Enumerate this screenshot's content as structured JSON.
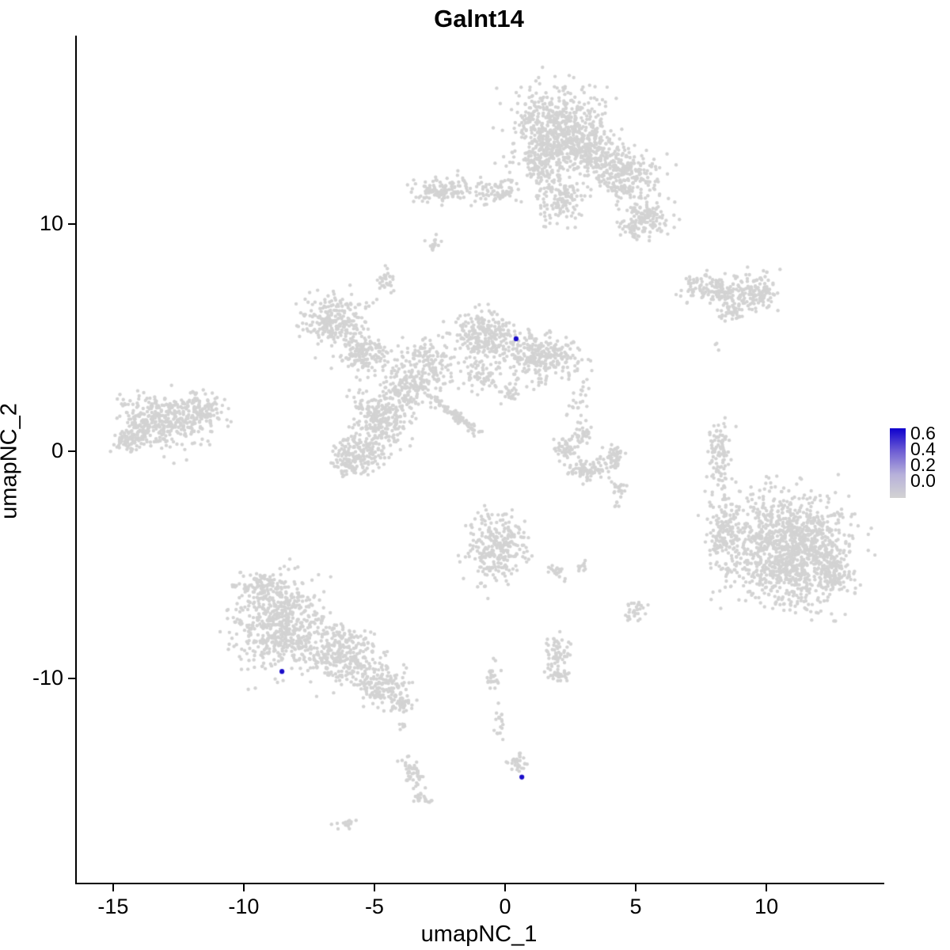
{
  "chart_data": {
    "type": "scatter",
    "title": "Galnt14",
    "xlabel": "umapNC_1",
    "ylabel": "umapNC_2",
    "xlim": [
      -16.45,
      14.45
    ],
    "ylim": [
      -19.0,
      18.3
    ],
    "x_ticks": [
      "-15",
      "-10",
      "-5",
      "0",
      "5",
      "10"
    ],
    "x_tick_values": [
      -15,
      -10,
      -5,
      0,
      5,
      10
    ],
    "y_ticks": [
      "10",
      "0",
      "-10"
    ],
    "y_tick_values": [
      10,
      0,
      -10
    ],
    "grid": false,
    "point_color": "#d3d3d3",
    "point_radius": 2.2,
    "highlight_color": "#1a0dc9",
    "legend": {
      "position": "right",
      "labels": [
        "0.6",
        "0.4",
        "0.2",
        "0.0"
      ],
      "gradient": [
        "#0e00cd",
        "#6f5fd4",
        "#b7b1da",
        "#d3d3d3"
      ]
    },
    "clusters": [
      {
        "x": 1.9,
        "y": 14.1,
        "rx": 1.7,
        "ry": 1.9,
        "rot": 0,
        "n": 650
      },
      {
        "x": 3.2,
        "y": 13.2,
        "rx": 1.0,
        "ry": 1.0,
        "rot": 0,
        "n": 200
      },
      {
        "x": 4.6,
        "y": 12.2,
        "rx": 1.2,
        "ry": 1.1,
        "rot": -30,
        "n": 250
      },
      {
        "x": 5.2,
        "y": 10.2,
        "rx": 1.0,
        "ry": 0.9,
        "rot": 0,
        "n": 160
      },
      {
        "x": 2.0,
        "y": 11.1,
        "rx": 0.9,
        "ry": 1.1,
        "rot": 0,
        "n": 140
      },
      {
        "x": -0.4,
        "y": 11.4,
        "rx": 0.8,
        "ry": 0.5,
        "rot": 0,
        "n": 70
      },
      {
        "x": -2.4,
        "y": 11.5,
        "rx": 1.2,
        "ry": 0.55,
        "rot": 10,
        "n": 130
      },
      {
        "x": -2.9,
        "y": 9.1,
        "rx": 0.3,
        "ry": 0.4,
        "rot": 0,
        "n": 15
      },
      {
        "x": 1.3,
        "y": 12.6,
        "rx": 0.6,
        "ry": 0.8,
        "rot": 0,
        "n": 80
      },
      {
        "x": -4.6,
        "y": 7.5,
        "rx": 0.35,
        "ry": 0.55,
        "rot": 0,
        "n": 30
      },
      {
        "x": 7.9,
        "y": 7.1,
        "rx": 1.4,
        "ry": 0.6,
        "rot": -8,
        "n": 150
      },
      {
        "x": 9.6,
        "y": 7.0,
        "rx": 0.9,
        "ry": 0.85,
        "rot": 0,
        "n": 130
      },
      {
        "x": 8.6,
        "y": 6.1,
        "rx": 0.5,
        "ry": 0.4,
        "rot": 0,
        "n": 40
      },
      {
        "x": 8.0,
        "y": 4.6,
        "rx": 0.15,
        "ry": 0.2,
        "rot": 0,
        "n": 3
      },
      {
        "x": -6.6,
        "y": 5.75,
        "rx": 1.2,
        "ry": 1.1,
        "rot": 20,
        "n": 240
      },
      {
        "x": -5.5,
        "y": 4.3,
        "rx": 0.95,
        "ry": 0.85,
        "rot": 0,
        "n": 150
      },
      {
        "x": -0.9,
        "y": 5.0,
        "rx": 1.1,
        "ry": 1.1,
        "rot": 0,
        "n": 260
      },
      {
        "x": 1.3,
        "y": 4.2,
        "rx": 1.4,
        "ry": 1.0,
        "rot": -15,
        "n": 280
      },
      {
        "x": -3.6,
        "y": 3.1,
        "rx": 1.4,
        "ry": 1.0,
        "rot": 25,
        "n": 230
      },
      {
        "x": -4.8,
        "y": 1.4,
        "rx": 1.1,
        "ry": 1.2,
        "rot": 0,
        "n": 260
      },
      {
        "x": -5.7,
        "y": -0.2,
        "rx": 0.95,
        "ry": 0.9,
        "rot": 0,
        "n": 190
      },
      {
        "x": -2.0,
        "y": 1.6,
        "rx": 1.5,
        "ry": 0.22,
        "rot": -40,
        "n": 90
      },
      {
        "x": -3.0,
        "y": 4.3,
        "rx": 1.1,
        "ry": 0.7,
        "rot": 0,
        "n": 70
      },
      {
        "x": -0.9,
        "y": 3.2,
        "rx": 0.7,
        "ry": 0.5,
        "rot": 0,
        "n": 60
      },
      {
        "x": 0.2,
        "y": 2.6,
        "rx": 0.4,
        "ry": 0.5,
        "rot": 0,
        "n": 25
      },
      {
        "x": 2.8,
        "y": 2.2,
        "rx": 0.4,
        "ry": 0.9,
        "rot": 0,
        "n": 25
      },
      {
        "x": 2.3,
        "y": 0.1,
        "rx": 0.45,
        "ry": 0.5,
        "rot": 0,
        "n": 50
      },
      {
        "x": 3.1,
        "y": -0.8,
        "rx": 0.7,
        "ry": 0.45,
        "rot": 0,
        "n": 80
      },
      {
        "x": 4.1,
        "y": -0.2,
        "rx": 0.4,
        "ry": 0.6,
        "rot": 0,
        "n": 50
      },
      {
        "x": 2.9,
        "y": 0.7,
        "rx": 0.35,
        "ry": 0.35,
        "rot": 0,
        "n": 30
      },
      {
        "x": 4.3,
        "y": -1.6,
        "rx": 0.3,
        "ry": 0.3,
        "rot": 0,
        "n": 20
      },
      {
        "x": -13.3,
        "y": 1.3,
        "rx": 1.5,
        "ry": 1.1,
        "rot": -10,
        "n": 340
      },
      {
        "x": -11.7,
        "y": 1.8,
        "rx": 0.9,
        "ry": 0.8,
        "rot": 0,
        "n": 140
      },
      {
        "x": -14.4,
        "y": 0.4,
        "rx": 0.6,
        "ry": 0.5,
        "rot": 0,
        "n": 70
      },
      {
        "x": 8.1,
        "y": -0.2,
        "rx": 0.45,
        "ry": 1.6,
        "rot": 0,
        "n": 100
      },
      {
        "x": 10.8,
        "y": -4.4,
        "rx": 2.3,
        "ry": 2.4,
        "rot": 0,
        "n": 1250
      },
      {
        "x": 8.3,
        "y": -3.6,
        "rx": 0.7,
        "ry": 1.5,
        "rot": 0,
        "n": 140
      },
      {
        "x": 12.6,
        "y": -5.4,
        "rx": 0.6,
        "ry": 0.8,
        "rot": 0,
        "n": 80
      },
      {
        "x": -0.45,
        "y": -4.2,
        "rx": 1.05,
        "ry": 1.6,
        "rot": 0,
        "n": 280
      },
      {
        "x": 1.9,
        "y": -5.3,
        "rx": 0.35,
        "ry": 0.3,
        "rot": 0,
        "n": 20
      },
      {
        "x": 2.9,
        "y": -5.1,
        "rx": 0.25,
        "ry": 0.25,
        "rot": 0,
        "n": 10
      },
      {
        "x": 4.9,
        "y": -7.0,
        "rx": 0.4,
        "ry": 0.5,
        "rot": 0,
        "n": 30
      },
      {
        "x": 4.2,
        "y": -2.3,
        "rx": 0.15,
        "ry": 0.3,
        "rot": 0,
        "n": 5
      },
      {
        "x": -8.7,
        "y": -7.6,
        "rx": 1.7,
        "ry": 2.0,
        "rot": 0,
        "n": 600
      },
      {
        "x": -6.3,
        "y": -9.0,
        "rx": 1.4,
        "ry": 1.2,
        "rot": -25,
        "n": 300
      },
      {
        "x": -4.8,
        "y": -10.3,
        "rx": 0.9,
        "ry": 0.85,
        "rot": -20,
        "n": 150
      },
      {
        "x": -4.0,
        "y": -11.1,
        "rx": 0.5,
        "ry": 0.4,
        "rot": 0,
        "n": 45
      },
      {
        "x": -9.3,
        "y": -5.9,
        "rx": 0.9,
        "ry": 0.5,
        "rot": 0,
        "n": 80
      },
      {
        "x": -4.0,
        "y": -12.1,
        "rx": 0.2,
        "ry": 0.2,
        "rot": 0,
        "n": 6
      },
      {
        "x": 1.9,
        "y": -8.9,
        "rx": 0.45,
        "ry": 0.7,
        "rot": 0,
        "n": 55
      },
      {
        "x": 2.0,
        "y": -9.9,
        "rx": 0.4,
        "ry": 0.35,
        "rot": 0,
        "n": 30
      },
      {
        "x": -0.55,
        "y": -9.9,
        "rx": 0.3,
        "ry": 0.6,
        "rot": 0,
        "n": 25
      },
      {
        "x": -0.25,
        "y": -11.9,
        "rx": 0.25,
        "ry": 0.8,
        "rot": 0,
        "n": 18
      },
      {
        "x": 0.45,
        "y": -13.7,
        "rx": 0.4,
        "ry": 0.45,
        "rot": 0,
        "n": 30
      },
      {
        "x": -3.6,
        "y": -14.2,
        "rx": 0.35,
        "ry": 0.8,
        "rot": 15,
        "n": 50
      },
      {
        "x": -3.3,
        "y": -15.3,
        "rx": 0.3,
        "ry": 0.3,
        "rot": 0,
        "n": 20
      },
      {
        "x": -6.1,
        "y": -16.4,
        "rx": 0.4,
        "ry": 0.25,
        "rot": 0,
        "n": 14
      }
    ],
    "highlighted_points": [
      {
        "x": 0.36,
        "y": 4.95,
        "value": 0.6
      },
      {
        "x": -8.6,
        "y": -9.7,
        "value": 0.6
      },
      {
        "x": 0.58,
        "y": -14.35,
        "value": 0.6
      }
    ]
  }
}
